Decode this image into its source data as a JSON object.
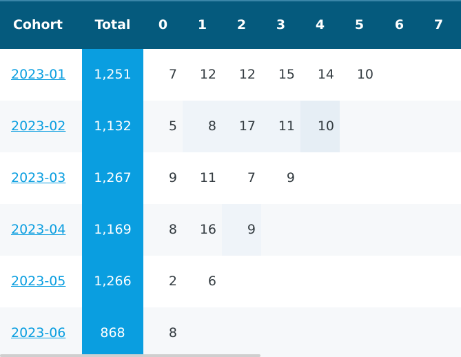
{
  "header": {
    "cohort_label": "Cohort",
    "total_label": "Total",
    "period_labels": [
      "0",
      "1",
      "2",
      "3",
      "4",
      "5",
      "6",
      "7"
    ]
  },
  "rows": [
    {
      "cohort": "2023-01",
      "total": "1,251",
      "values": [
        "7",
        "12",
        "12",
        "15",
        "14",
        "10"
      ]
    },
    {
      "cohort": "2023-02",
      "total": "1,132",
      "values": [
        "5",
        "8",
        "17",
        "11",
        "10"
      ]
    },
    {
      "cohort": "2023-03",
      "total": "1,267",
      "values": [
        "9",
        "11",
        "7",
        "9"
      ]
    },
    {
      "cohort": "2023-04",
      "total": "1,169",
      "values": [
        "8",
        "16",
        "9"
      ]
    },
    {
      "cohort": "2023-05",
      "total": "1,266",
      "values": [
        "2",
        "6"
      ]
    },
    {
      "cohort": "2023-06",
      "total": "868",
      "values": [
        "8"
      ]
    }
  ],
  "colors": {
    "header_bg": "#055a7d",
    "total_bg": "#0a9ee0",
    "link": "#0a9ee0",
    "text": "#333b40"
  }
}
